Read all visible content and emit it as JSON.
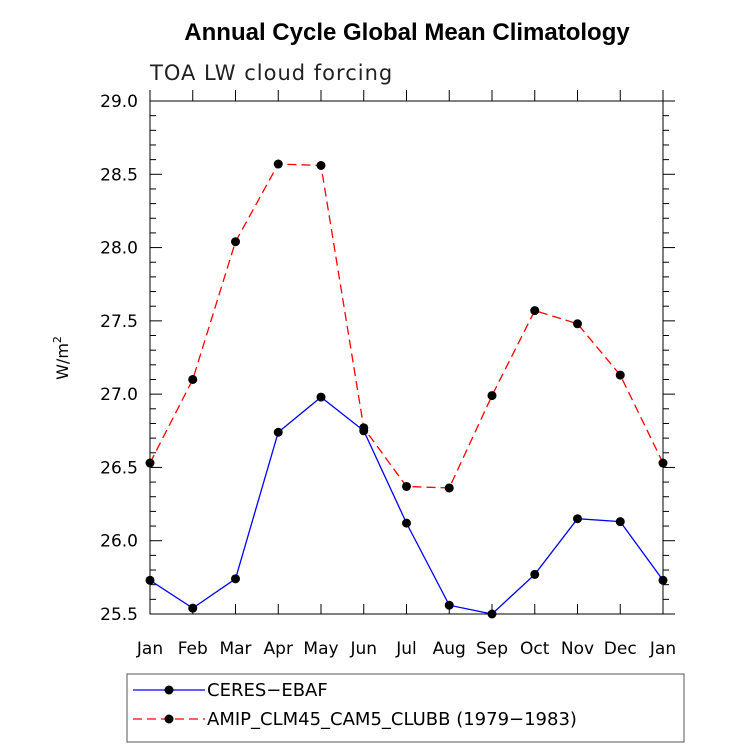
{
  "chart_data": {
    "type": "line",
    "title": "Annual Cycle Global Mean Climatology",
    "subtitle": "TOA LW cloud forcing",
    "ylabel_base": "W/m",
    "ylabel_sup": "2",
    "xlabel": "",
    "categories": [
      "Jan",
      "Feb",
      "Mar",
      "Apr",
      "May",
      "Jun",
      "Jul",
      "Aug",
      "Sep",
      "Oct",
      "Nov",
      "Dec",
      "Jan"
    ],
    "ylim": [
      25.5,
      29.0
    ],
    "yticks": [
      "25.5",
      "26.0",
      "26.5",
      "27.0",
      "27.5",
      "28.0",
      "28.5",
      "29.0"
    ],
    "series": [
      {
        "name": "CERES−EBAF",
        "color": "#0000ff",
        "dash": "solid",
        "values": [
          25.73,
          25.54,
          25.74,
          26.74,
          26.98,
          26.75,
          26.12,
          25.56,
          25.5,
          25.77,
          26.15,
          26.13,
          25.73
        ]
      },
      {
        "name": "AMIP_CLM45_CAM5_CLUBB (1979−1983)",
        "color": "#ff0000",
        "dash": "dashed",
        "values": [
          26.53,
          27.1,
          28.04,
          28.57,
          28.56,
          26.77,
          26.37,
          26.36,
          26.99,
          27.57,
          27.48,
          27.13,
          26.53
        ]
      }
    ],
    "legend_position": "bottom"
  }
}
